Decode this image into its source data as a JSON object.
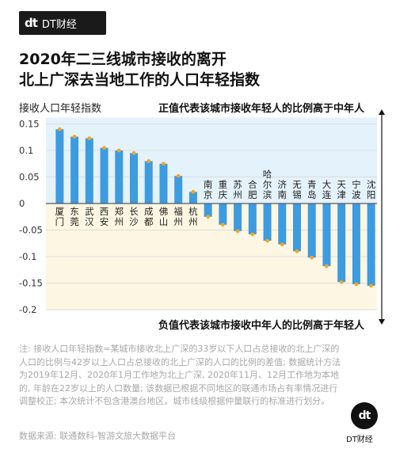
{
  "brand": {
    "logo": "dt",
    "name": "DT财经"
  },
  "title_line1": "2020年二三线城市接收的离开",
  "title_line2": "北上广深去当地工作的人口年轻指数",
  "notes": {
    "positive": "正值代表该城市接收年轻人的比例高于中年人",
    "negative": "负值代表该城市接收中年人的比例高于年轻人"
  },
  "footnote": "注: 接收人口年轻指数=某城市接收北上广深的33岁以下人口占总接收的北上广深的人口的比例与42岁以上人口占总接收的北上广深的人口的比例的差值; 数据统计方法为2019年12月、2020年1月工作地为北上广深, 2020年11月、12月工作地为本地的, 年龄在22岁以上的人口数量; 该数据已根据不同地区的联通市场占有率情况进行调整校正; 本次统计不包含港澳台地区。城市线级根据仲量联行的标准进行划分。",
  "source": "数据来源: 联通数科-智游文旅大数据平台",
  "badge": {
    "mark": "dt",
    "label": "DT财经"
  },
  "colors": {
    "bar": "#3d9be0",
    "dot": "#f5a623",
    "positive_band": "#e4f2fb",
    "negative_band": "#fdf6e2",
    "zero_line": "#5a5a5a",
    "grid": "#dddddd"
  },
  "chart_data": {
    "type": "bar",
    "ylabel": "接收人口年轻指数",
    "ylim": [
      -0.2,
      0.15
    ],
    "yticks": [
      0.15,
      0.1,
      0.05,
      0,
      -0.05,
      -0.1,
      -0.15,
      -0.2
    ],
    "categories": [
      "厦门",
      "东莞",
      "武汉",
      "西安",
      "郑州",
      "长沙",
      "成都",
      "佛山",
      "福州",
      "杭州",
      "南京",
      "重庆",
      "苏州",
      "合肥",
      "哈尔滨",
      "济南",
      "无锡",
      "青岛",
      "大连",
      "天津",
      "宁波",
      "沈阳"
    ],
    "values": [
      0.14,
      0.126,
      0.123,
      0.105,
      0.1,
      0.095,
      0.08,
      0.075,
      0.052,
      0.022,
      -0.025,
      -0.04,
      -0.052,
      -0.058,
      -0.07,
      -0.077,
      -0.09,
      -0.102,
      -0.118,
      -0.148,
      -0.152,
      -0.155
    ]
  }
}
